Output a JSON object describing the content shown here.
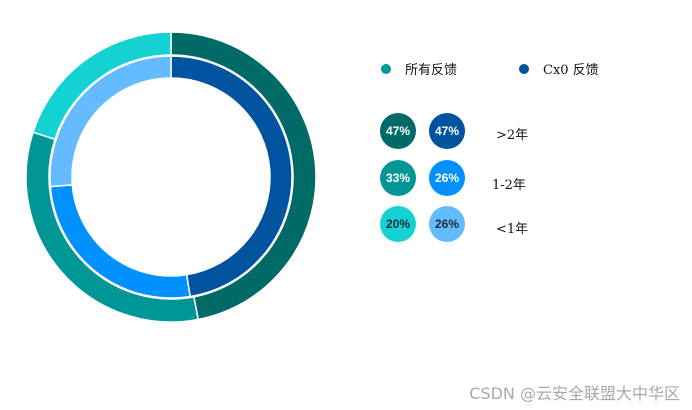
{
  "chart_data": {
    "type": "pie",
    "subtype": "nested-donut",
    "title": "",
    "legend": [
      {
        "name": "所有反馈",
        "color": "#009999"
      },
      {
        "name": "Cx0 反馈",
        "color": "#00539F"
      }
    ],
    "categories": [
      ">2年",
      "1-2年",
      "<1年"
    ],
    "series": [
      {
        "name": "所有反馈",
        "ring": "outer",
        "values": [
          47,
          33,
          20
        ],
        "colors": [
          "#006B66",
          "#009696",
          "#14D2D2"
        ]
      },
      {
        "name": "Cx0 反馈",
        "ring": "inner",
        "values": [
          47,
          26,
          26
        ],
        "colors": [
          "#00539F",
          "#0091FF",
          "#64BBFF"
        ]
      }
    ],
    "legend_position": "right"
  },
  "legend": {
    "all_feedback": "所有反馈",
    "cx0_feedback": "Cx0 反馈"
  },
  "rows": [
    {
      "label": ">2年",
      "all": "47%",
      "cx0": "47%",
      "all_color": "#006B66",
      "cx0_color": "#00539F",
      "all_text": "#ffffff",
      "cx0_text": "#ffffff"
    },
    {
      "label": "1-2年",
      "all": "33%",
      "cx0": "26%",
      "all_color": "#009696",
      "cx0_color": "#0091FF",
      "all_text": "#ffffff",
      "cx0_text": "#ffffff"
    },
    {
      "label": "<1年",
      "all": "20%",
      "cx0": "26%",
      "all_color": "#14D2D2",
      "cx0_color": "#64BBFF",
      "all_text": "#1a2a3a",
      "cx0_text": "#1a2a3a"
    }
  ],
  "watermark": "CSDN @云安全联盟大中华区"
}
